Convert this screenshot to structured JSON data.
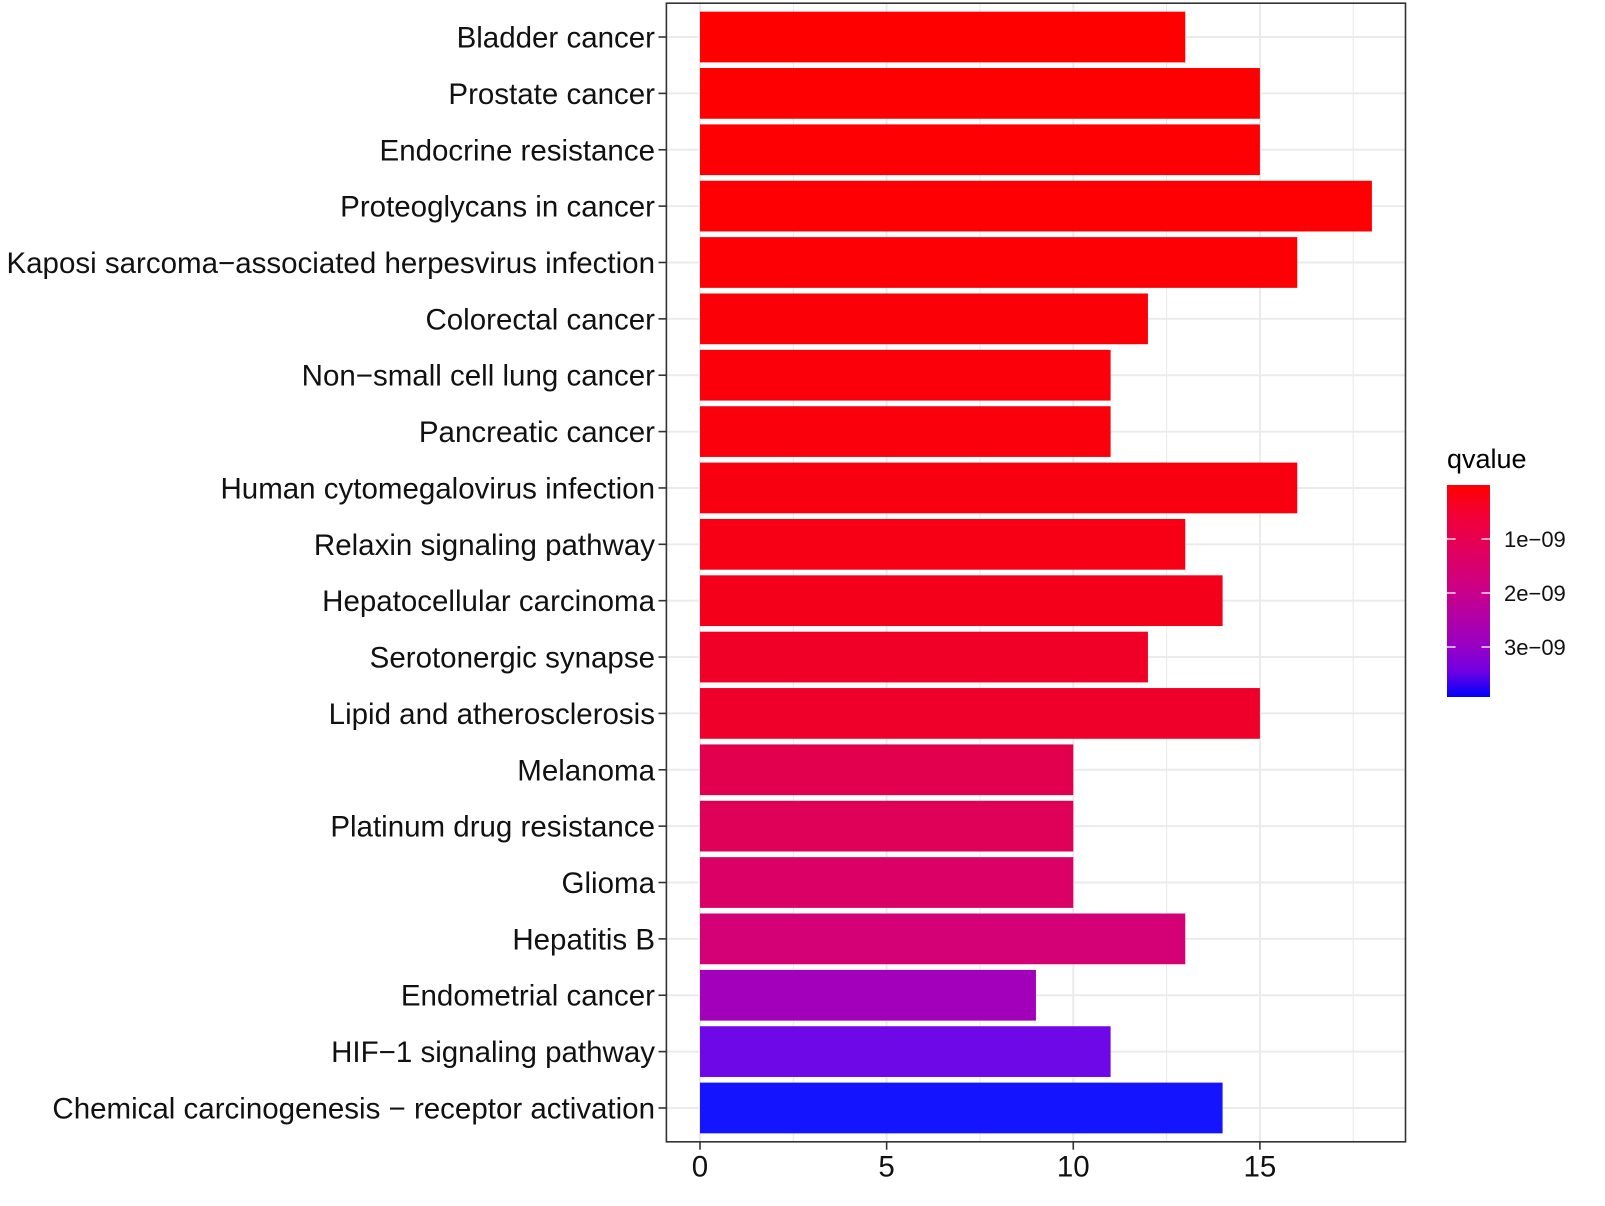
{
  "chart_data": {
    "type": "bar",
    "categories": [
      "Bladder cancer",
      "Prostate cancer",
      "Endocrine resistance",
      "Proteoglycans in cancer",
      "Kaposi sarcoma−associated herpesvirus infection",
      "Colorectal cancer",
      "Non−small cell lung cancer",
      "Pancreatic cancer",
      "Human cytomegalovirus infection",
      "Relaxin signaling pathway",
      "Hepatocellular carcinoma",
      "Serotonergic synapse",
      "Lipid and atherosclerosis",
      "Melanoma",
      "Platinum drug resistance",
      "Glioma",
      "Hepatitis B",
      "Endometrial cancer",
      "HIF−1 signaling pathway",
      "Chemical carcinogenesis − receptor activation"
    ],
    "values": [
      13,
      15,
      15,
      18,
      16,
      12,
      11,
      11,
      16,
      13,
      14,
      12,
      15,
      10,
      10,
      10,
      13,
      9,
      11,
      14
    ],
    "colors": [
      "#FF0000",
      "#FE0002",
      "#FE0003",
      "#FE0004",
      "#FD0006",
      "#FC0008",
      "#FB000B",
      "#FA000D",
      "#F90010",
      "#F70016",
      "#F5001B",
      "#F00026",
      "#EE002A",
      "#E2004E",
      "#DF0058",
      "#DA0066",
      "#D40076",
      "#A300BC",
      "#6E08E6",
      "#1414FF"
    ],
    "xticks": [
      0,
      5,
      10,
      15
    ],
    "xtick_labels": [
      "0",
      "5",
      "10",
      "15"
    ],
    "xlim": [
      -0.9,
      18.9
    ],
    "grid": true,
    "legend": {
      "title": "qvalue",
      "labels": [
        "1e−09",
        "2e−09",
        "3e−09"
      ],
      "placement": "right",
      "color_top": "#FF0000",
      "color_bottom": "#0000FF"
    }
  }
}
